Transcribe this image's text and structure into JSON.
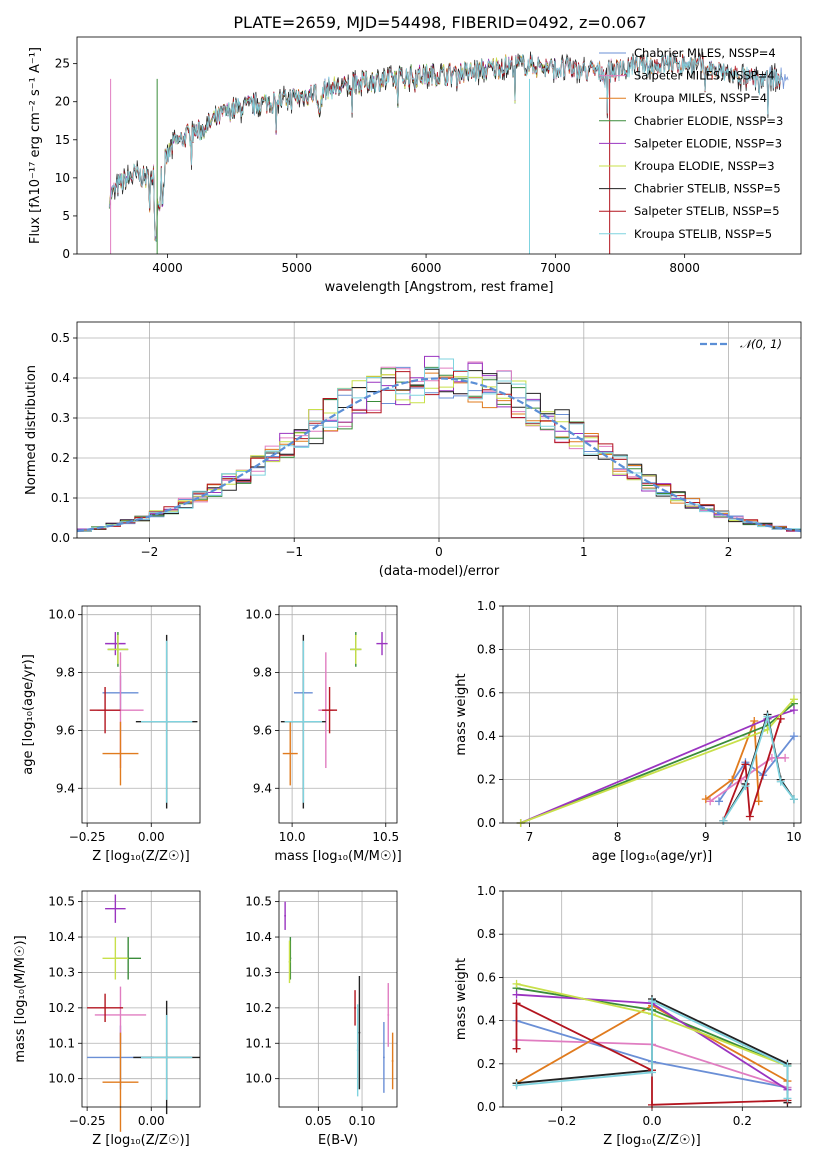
{
  "figure": {
    "title": "PLATE=2659, MJD=54498, FIBERID=0492, z=0.067"
  },
  "chart_data": [
    {
      "id": "spectrum",
      "type": "line",
      "xlabel": "wavelength [Angstrom, rest frame]",
      "ylabel": "Flux [fλ10⁻¹⁷ erg cm⁻² s⁻¹ A⁻¹]",
      "xlim": [
        3300,
        8900
      ],
      "ylim": [
        0,
        28.5
      ],
      "xticks": [
        4000,
        5000,
        6000,
        7000,
        8000
      ],
      "yticks": [
        0,
        5,
        10,
        15,
        20,
        25
      ],
      "grid": false,
      "legend_position": "top-right",
      "continuum": {
        "x": [
          3550,
          3650,
          3750,
          3850,
          3950,
          4050,
          4150,
          4250,
          4350,
          4500,
          4650,
          4800,
          4950,
          5100,
          5250,
          5400,
          5550,
          5700,
          5850,
          6000,
          6200,
          6400,
          6600,
          6800,
          7000,
          7200,
          7400,
          7600,
          7800,
          8000,
          8200,
          8500
        ],
        "y": [
          7.5,
          9.5,
          10.5,
          9.8,
          11.2,
          14.5,
          15.5,
          16.2,
          17.5,
          19.0,
          19.5,
          20.0,
          20.4,
          21.0,
          21.8,
          22.0,
          22.7,
          23.0,
          23.3,
          23.5,
          23.7,
          24.0,
          24.7,
          24.8,
          24.4,
          24.1,
          23.9,
          24.5,
          24.9,
          25.0,
          24.3,
          23.0
        ]
      },
      "series": [
        {
          "name": "Chabrier MILES, NSSP=4",
          "color": "#6a8fd6",
          "xmax": 8800
        },
        {
          "name": "Salpeter MILES, NSSP=4",
          "color": "#e07dc1",
          "xmax": 7500
        },
        {
          "name": "Kroupa MILES, NSSP=4",
          "color": "#e07b1e",
          "xmax": 8500
        },
        {
          "name": "Chabrier ELODIE, NSSP=3",
          "color": "#3a8c3a",
          "xmax": 7000
        },
        {
          "name": "Salpeter ELODIE, NSSP=3",
          "color": "#9a34c0",
          "xmax": 7000
        },
        {
          "name": "Kroupa ELODIE, NSSP=3",
          "color": "#c8e04a",
          "xmax": 7000
        },
        {
          "name": "Chabrier STELIB, NSSP=5",
          "color": "#222222",
          "xmax": 8750
        },
        {
          "name": "Salpeter STELIB, NSSP=5",
          "color": "#b3151f",
          "xmax": 8750
        },
        {
          "name": "Kroupa STELIB, NSSP=5",
          "color": "#7fd3df",
          "xmax": 8750
        }
      ]
    },
    {
      "id": "residuals",
      "type": "histogram",
      "xlabel": "(data-model)/error",
      "ylabel": "Normed distribution",
      "xlim": [
        -2.5,
        2.5
      ],
      "ylim": [
        0,
        0.54
      ],
      "xticks": [
        -2,
        -1,
        0,
        1,
        2
      ],
      "yticks": [
        0.0,
        0.1,
        0.2,
        0.3,
        0.4,
        0.5
      ],
      "grid": true,
      "legend_position": "top-right",
      "reference_curve": {
        "name": "𝒩(0, 1)",
        "mean": 0,
        "sigma": 1,
        "color": "#5b8fd6"
      },
      "bin_width": 0.1
    },
    {
      "id": "z-age",
      "type": "errorbar",
      "xlabel": "Z [log₁₀(Z/Z☉)]",
      "ylabel": "age  [log₁₀(age/yr)]",
      "xlim": [
        -0.27,
        0.19
      ],
      "ylim": [
        9.28,
        10.03
      ],
      "xticks": [
        -0.25,
        0.0
      ],
      "xtick_labels": [
        "−0.25",
        "0.00"
      ],
      "yticks": [
        9.4,
        9.6,
        9.8,
        10.0
      ],
      "grid": true,
      "points": [
        {
          "series": "Chabrier MILES",
          "x": -0.12,
          "y": 9.73,
          "xerr": 0.07,
          "yerr": 0.06
        },
        {
          "series": "Salpeter MILES",
          "x": -0.12,
          "y": 9.67,
          "xerr": 0.09,
          "yerr": 0.2
        },
        {
          "series": "Kroupa MILES",
          "x": -0.12,
          "y": 9.52,
          "xerr": 0.07,
          "yerr": 0.11
        },
        {
          "series": "Chabrier ELODIE",
          "x": -0.13,
          "y": 9.88,
          "xerr": 0.04,
          "yerr": 0.06
        },
        {
          "series": "Salpeter ELODIE",
          "x": -0.14,
          "y": 9.9,
          "xerr": 0.04,
          "yerr": 0.04
        },
        {
          "series": "Kroupa ELODIE",
          "x": -0.13,
          "y": 9.88,
          "xerr": 0.04,
          "yerr": 0.05
        },
        {
          "series": "Chabrier STELIB",
          "x": 0.06,
          "y": 9.63,
          "xerr": 0.12,
          "yerr": 0.3
        },
        {
          "series": "Salpeter STELIB",
          "x": -0.18,
          "y": 9.67,
          "xerr": 0.06,
          "yerr": 0.08
        },
        {
          "series": "Kroupa STELIB",
          "x": 0.06,
          "y": 9.63,
          "xerr": 0.1,
          "yerr": 0.28
        }
      ]
    },
    {
      "id": "mass-age",
      "type": "errorbar",
      "xlabel": "mass [log₁₀(M/M☉)]",
      "ylabel": "",
      "xlim": [
        9.93,
        10.56
      ],
      "ylim": [
        9.28,
        10.03
      ],
      "xticks": [
        10.0,
        10.5
      ],
      "xtick_labels": [
        "10.0",
        "10.5"
      ],
      "yticks": [
        9.4,
        9.6,
        9.8,
        10.0
      ],
      "grid": true,
      "points": [
        {
          "series": "Chabrier MILES",
          "x": 10.06,
          "y": 9.73,
          "xerr": 0.05,
          "yerr": 0.06
        },
        {
          "series": "Salpeter MILES",
          "x": 10.18,
          "y": 9.67,
          "xerr": 0.04,
          "yerr": 0.2
        },
        {
          "series": "Kroupa MILES",
          "x": 9.99,
          "y": 9.52,
          "xerr": 0.04,
          "yerr": 0.11
        },
        {
          "series": "Chabrier ELODIE",
          "x": 10.34,
          "y": 9.88,
          "xerr": 0.03,
          "yerr": 0.06
        },
        {
          "series": "Salpeter ELODIE",
          "x": 10.48,
          "y": 9.9,
          "xerr": 0.03,
          "yerr": 0.04
        },
        {
          "series": "Kroupa ELODIE",
          "x": 10.34,
          "y": 9.88,
          "xerr": 0.03,
          "yerr": 0.05
        },
        {
          "series": "Chabrier STELIB",
          "x": 10.06,
          "y": 9.63,
          "xerr": 0.12,
          "yerr": 0.3
        },
        {
          "series": "Salpeter STELIB",
          "x": 10.2,
          "y": 9.67,
          "xerr": 0.04,
          "yerr": 0.08
        },
        {
          "series": "Kroupa STELIB",
          "x": 10.06,
          "y": 9.63,
          "xerr": 0.1,
          "yerr": 0.28
        }
      ]
    },
    {
      "id": "age-weight",
      "type": "line",
      "xlabel": "age  [log₁₀(age/yr)]",
      "ylabel": "mass weight",
      "xlim": [
        6.7,
        10.08
      ],
      "ylim": [
        0,
        1
      ],
      "xticks": [
        7,
        8,
        9,
        10
      ],
      "yticks": [
        0.0,
        0.2,
        0.4,
        0.6,
        0.8,
        1.0
      ],
      "grid": true,
      "series": [
        {
          "name": "Chabrier MILES",
          "x": [
            9.15,
            9.45,
            9.65,
            10.0
          ],
          "y": [
            0.1,
            0.28,
            0.22,
            0.4
          ]
        },
        {
          "name": "Salpeter MILES",
          "x": [
            9.05,
            9.4,
            9.75,
            9.9
          ],
          "y": [
            0.1,
            0.2,
            0.3,
            0.3
          ]
        },
        {
          "name": "Kroupa MILES",
          "x": [
            9.0,
            9.3,
            9.55,
            9.6
          ],
          "y": [
            0.11,
            0.2,
            0.47,
            0.1
          ]
        },
        {
          "name": "Chabrier ELODIE",
          "x": [
            6.9,
            9.7,
            10.0
          ],
          "y": [
            0.0,
            0.45,
            0.55
          ]
        },
        {
          "name": "Salpeter ELODIE",
          "x": [
            6.9,
            9.7,
            10.0
          ],
          "y": [
            0.0,
            0.48,
            0.52
          ]
        },
        {
          "name": "Kroupa ELODIE",
          "x": [
            6.9,
            9.7,
            10.0
          ],
          "y": [
            0.0,
            0.43,
            0.57
          ]
        },
        {
          "name": "Chabrier STELIB",
          "x": [
            9.2,
            9.45,
            9.7,
            9.85,
            10.0
          ],
          "y": [
            0.01,
            0.18,
            0.5,
            0.2,
            0.11
          ]
        },
        {
          "name": "Salpeter STELIB",
          "x": [
            9.2,
            9.45,
            9.5,
            9.85
          ],
          "y": [
            0.01,
            0.27,
            0.03,
            0.48
          ]
        },
        {
          "name": "Kroupa STELIB",
          "x": [
            9.2,
            9.45,
            9.7,
            9.85,
            10.0
          ],
          "y": [
            0.01,
            0.17,
            0.49,
            0.19,
            0.11
          ]
        }
      ]
    },
    {
      "id": "z-mass",
      "type": "errorbar",
      "xlabel": "Z [log₁₀(Z/Z☉)]",
      "ylabel": "mass [log₁₀(M/M☉)]",
      "xlim": [
        -0.27,
        0.19
      ],
      "ylim": [
        9.92,
        10.53
      ],
      "xticks": [
        -0.25,
        0.0
      ],
      "xtick_labels": [
        "−0.25",
        "0.00"
      ],
      "yticks": [
        10.0,
        10.1,
        10.2,
        10.3,
        10.4,
        10.5
      ],
      "grid": true,
      "points": [
        {
          "series": "Chabrier MILES",
          "x": -0.12,
          "y": 10.06,
          "xerr": 0.13,
          "yerr": 0.09
        },
        {
          "series": "Salpeter MILES",
          "x": -0.12,
          "y": 10.18,
          "xerr": 0.1,
          "yerr": 0.08
        },
        {
          "series": "Kroupa MILES",
          "x": -0.12,
          "y": 9.99,
          "xerr": 0.07,
          "yerr": 0.14
        },
        {
          "series": "Chabrier ELODIE",
          "x": -0.09,
          "y": 10.34,
          "xerr": 0.05,
          "yerr": 0.06
        },
        {
          "series": "Salpeter ELODIE",
          "x": -0.14,
          "y": 10.48,
          "xerr": 0.04,
          "yerr": 0.04
        },
        {
          "series": "Kroupa ELODIE",
          "x": -0.14,
          "y": 10.34,
          "xerr": 0.05,
          "yerr": 0.06
        },
        {
          "series": "Chabrier STELIB",
          "x": 0.06,
          "y": 10.06,
          "xerr": 0.13,
          "yerr": 0.16
        },
        {
          "series": "Salpeter STELIB",
          "x": -0.18,
          "y": 10.2,
          "xerr": 0.07,
          "yerr": 0.04
        },
        {
          "series": "Kroupa STELIB",
          "x": 0.06,
          "y": 10.06,
          "xerr": 0.1,
          "yerr": 0.12
        }
      ]
    },
    {
      "id": "ebv-mass",
      "type": "errorbar",
      "xlabel": "E(B-V)",
      "ylabel": "",
      "xlim": [
        0.005,
        0.14
      ],
      "ylim": [
        9.92,
        10.53
      ],
      "xticks": [
        0.05,
        0.1
      ],
      "xtick_labels": [
        "0.05",
        "0.10"
      ],
      "yticks": [
        10.0,
        10.1,
        10.2,
        10.3,
        10.4,
        10.5
      ],
      "grid": true,
      "points": [
        {
          "series": "Chabrier MILES",
          "x": 0.125,
          "y": 10.06,
          "xerr": 0.001,
          "yerr": 0.1
        },
        {
          "series": "Salpeter MILES",
          "x": 0.13,
          "y": 10.18,
          "xerr": 0.001,
          "yerr": 0.09
        },
        {
          "series": "Kroupa MILES",
          "x": 0.135,
          "y": 10.05,
          "xerr": 0.001,
          "yerr": 0.08
        },
        {
          "series": "Chabrier ELODIE",
          "x": 0.018,
          "y": 10.34,
          "xerr": 0.001,
          "yerr": 0.06
        },
        {
          "series": "Salpeter ELODIE",
          "x": 0.012,
          "y": 10.46,
          "xerr": 0.001,
          "yerr": 0.04
        },
        {
          "series": "Kroupa ELODIE",
          "x": 0.017,
          "y": 10.33,
          "xerr": 0.001,
          "yerr": 0.06
        },
        {
          "series": "Chabrier STELIB",
          "x": 0.097,
          "y": 10.13,
          "xerr": 0.001,
          "yerr": 0.16
        },
        {
          "series": "Salpeter STELIB",
          "x": 0.092,
          "y": 10.2,
          "xerr": 0.001,
          "yerr": 0.05
        },
        {
          "series": "Kroupa STELIB",
          "x": 0.095,
          "y": 10.08,
          "xerr": 0.001,
          "yerr": 0.13
        }
      ]
    },
    {
      "id": "z-weight",
      "type": "line",
      "xlabel": "Z [log₁₀(Z/Z☉)]",
      "ylabel": "mass weight",
      "xlim": [
        -0.33,
        0.33
      ],
      "ylim": [
        0,
        1
      ],
      "xticks": [
        -0.2,
        0.0,
        0.2
      ],
      "xtick_labels": [
        "−0.2",
        "0.0",
        "0.2"
      ],
      "yticks": [
        0.0,
        0.2,
        0.4,
        0.6,
        0.8,
        1.0
      ],
      "grid": true,
      "series": [
        {
          "name": "Chabrier MILES",
          "x": [
            -0.3,
            0.0,
            0.3
          ],
          "y": [
            0.4,
            0.21,
            0.09
          ]
        },
        {
          "name": "Salpeter MILES",
          "x": [
            -0.3,
            0.0,
            0.3
          ],
          "y": [
            0.31,
            0.29,
            0.09
          ]
        },
        {
          "name": "Kroupa MILES",
          "x": [
            -0.3,
            0.0,
            0.3
          ],
          "y": [
            0.11,
            0.47,
            0.12
          ]
        },
        {
          "name": "Chabrier ELODIE",
          "x": [
            -0.3,
            0.0,
            0.3
          ],
          "y": [
            0.55,
            0.45,
            0.19
          ]
        },
        {
          "name": "Salpeter ELODIE",
          "x": [
            -0.3,
            0.0,
            0.3
          ],
          "y": [
            0.52,
            0.48,
            0.08
          ]
        },
        {
          "name": "Kroupa ELODIE",
          "x": [
            -0.3,
            0.0,
            0.3
          ],
          "y": [
            0.57,
            0.43,
            0.19
          ]
        },
        {
          "name": "Chabrier STELIB",
          "x": [
            -0.3,
            0.0,
            0.0,
            0.3,
            0.3
          ],
          "y": [
            0.11,
            0.17,
            0.5,
            0.2,
            0.02
          ]
        },
        {
          "name": "Salpeter STELIB",
          "x": [
            -0.3,
            -0.3,
            0.0,
            0.0,
            0.3
          ],
          "y": [
            0.27,
            0.48,
            0.17,
            0.01,
            0.03
          ]
        },
        {
          "name": "Kroupa STELIB",
          "x": [
            -0.3,
            0.0,
            0.0,
            0.3,
            0.3
          ],
          "y": [
            0.1,
            0.16,
            0.49,
            0.19,
            0.04
          ]
        }
      ]
    }
  ]
}
